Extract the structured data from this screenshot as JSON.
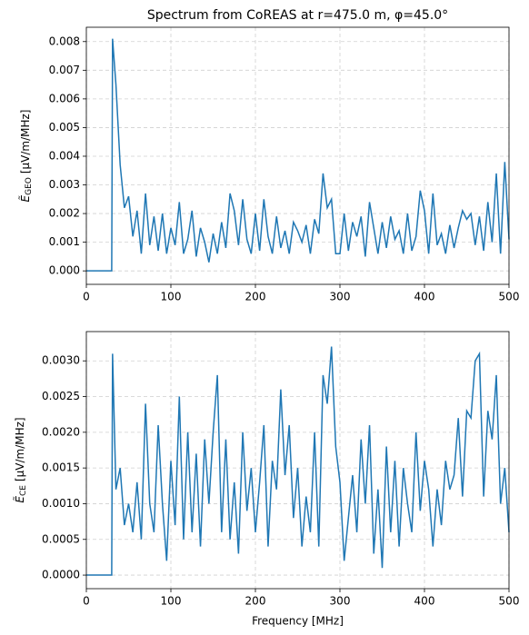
{
  "chart_data": [
    {
      "type": "line",
      "title": "Spectrum from CoREAS at r=475.0 m, φ=45.0°",
      "y_label": {
        "symbol": "Ẽ",
        "subscript": "GEO",
        "unit": "[μV/m/MHz]"
      },
      "color": "#1f77b4",
      "grid": true,
      "xlim": [
        0,
        500
      ],
      "xticks": [
        0,
        100,
        200,
        300,
        400,
        500
      ],
      "ylim": [
        -0.00047,
        0.0085
      ],
      "yticks": [
        {
          "value": 0,
          "label": "0.000"
        },
        {
          "value": 0.001,
          "label": "0.001"
        },
        {
          "value": 0.002,
          "label": "0.002"
        },
        {
          "value": 0.003,
          "label": "0.003"
        },
        {
          "value": 0.004,
          "label": "0.004"
        },
        {
          "value": 0.005,
          "label": "0.005"
        },
        {
          "value": 0.006,
          "label": "0.006"
        },
        {
          "value": 0.007,
          "label": "0.007"
        },
        {
          "value": 0.008,
          "label": "0.008"
        }
      ],
      "x": [
        0,
        30,
        31,
        35,
        40,
        45,
        50,
        55,
        60,
        65,
        70,
        75,
        80,
        85,
        90,
        95,
        100,
        105,
        110,
        115,
        120,
        125,
        130,
        135,
        140,
        145,
        150,
        155,
        160,
        165,
        170,
        175,
        180,
        185,
        190,
        195,
        200,
        205,
        210,
        215,
        220,
        225,
        230,
        235,
        240,
        245,
        250,
        255,
        260,
        265,
        270,
        275,
        280,
        285,
        290,
        295,
        300,
        305,
        310,
        315,
        320,
        325,
        330,
        335,
        340,
        345,
        350,
        355,
        360,
        365,
        370,
        375,
        380,
        385,
        390,
        395,
        400,
        405,
        410,
        415,
        420,
        425,
        430,
        435,
        440,
        445,
        450,
        455,
        460,
        465,
        470,
        475,
        480,
        485,
        490,
        495,
        500
      ],
      "values": [
        0,
        0,
        0.0081,
        0.0065,
        0.0037,
        0.0022,
        0.0026,
        0.0012,
        0.0021,
        0.0006,
        0.0027,
        0.0009,
        0.0019,
        0.0007,
        0.002,
        0.0006,
        0.0015,
        0.0009,
        0.0024,
        0.0006,
        0.0011,
        0.0021,
        0.0005,
        0.0015,
        0.001,
        0.0003,
        0.0013,
        0.0006,
        0.0017,
        0.0008,
        0.0027,
        0.0021,
        0.0009,
        0.0025,
        0.0011,
        0.0006,
        0.002,
        0.0007,
        0.0025,
        0.0012,
        0.0006,
        0.0019,
        0.0008,
        0.0014,
        0.0006,
        0.0017,
        0.0014,
        0.001,
        0.0016,
        0.0006,
        0.0018,
        0.0013,
        0.0034,
        0.0022,
        0.0025,
        0.0006,
        0.0006,
        0.002,
        0.0007,
        0.0017,
        0.0012,
        0.0019,
        0.0005,
        0.0024,
        0.0015,
        0.0006,
        0.0017,
        0.0008,
        0.0019,
        0.0011,
        0.0014,
        0.0006,
        0.002,
        0.0007,
        0.0012,
        0.0028,
        0.0021,
        0.0006,
        0.0027,
        0.0009,
        0.0013,
        0.0006,
        0.0016,
        0.0008,
        0.0015,
        0.0021,
        0.0018,
        0.002,
        0.0009,
        0.0019,
        0.0007,
        0.0024,
        0.001,
        0.0034,
        0.0006,
        0.0038,
        0.0011
      ]
    },
    {
      "type": "line",
      "x_label": "Frequency [MHz]",
      "y_label": {
        "symbol": "Ẽ",
        "subscript": "CE",
        "unit": "[μV/m/MHz]"
      },
      "color": "#1f77b4",
      "grid": true,
      "xlim": [
        0,
        500
      ],
      "xticks": [
        0,
        100,
        200,
        300,
        400,
        500
      ],
      "ylim": [
        -0.00019,
        0.00341
      ],
      "yticks": [
        {
          "value": 0,
          "label": "0.0000"
        },
        {
          "value": 0.0005,
          "label": "0.0005"
        },
        {
          "value": 0.001,
          "label": "0.0010"
        },
        {
          "value": 0.0015,
          "label": "0.0015"
        },
        {
          "value": 0.002,
          "label": "0.0020"
        },
        {
          "value": 0.0025,
          "label": "0.0025"
        },
        {
          "value": 0.003,
          "label": "0.0030"
        }
      ],
      "x": [
        0,
        30,
        31,
        35,
        40,
        45,
        50,
        55,
        60,
        65,
        70,
        75,
        80,
        85,
        90,
        95,
        100,
        105,
        110,
        115,
        120,
        125,
        130,
        135,
        140,
        145,
        150,
        155,
        160,
        165,
        170,
        175,
        180,
        185,
        190,
        195,
        200,
        205,
        210,
        215,
        220,
        225,
        230,
        235,
        240,
        245,
        250,
        255,
        260,
        265,
        270,
        275,
        280,
        285,
        290,
        295,
        300,
        305,
        310,
        315,
        320,
        325,
        330,
        335,
        340,
        345,
        350,
        355,
        360,
        365,
        370,
        375,
        380,
        385,
        390,
        395,
        400,
        405,
        410,
        415,
        420,
        425,
        430,
        435,
        440,
        445,
        450,
        455,
        460,
        465,
        470,
        475,
        480,
        485,
        490,
        495,
        500
      ],
      "values": [
        0,
        0,
        0.0031,
        0.0012,
        0.0015,
        0.0007,
        0.001,
        0.0006,
        0.0013,
        0.0005,
        0.0024,
        0.001,
        0.0006,
        0.0021,
        0.001,
        0.0002,
        0.0016,
        0.0007,
        0.0025,
        0.0005,
        0.002,
        0.0006,
        0.0017,
        0.0004,
        0.0019,
        0.001,
        0.002,
        0.0028,
        0.0006,
        0.0019,
        0.0005,
        0.0013,
        0.0003,
        0.002,
        0.0009,
        0.0015,
        0.0006,
        0.0013,
        0.0021,
        0.0004,
        0.0016,
        0.0012,
        0.0026,
        0.0014,
        0.0021,
        0.0008,
        0.0015,
        0.0004,
        0.0011,
        0.0006,
        0.002,
        0.0004,
        0.0028,
        0.0024,
        0.0032,
        0.0018,
        0.0013,
        0.0002,
        0.0008,
        0.0014,
        0.0006,
        0.0019,
        0.001,
        0.0021,
        0.0003,
        0.0012,
        0.0001,
        0.0018,
        0.0006,
        0.0016,
        0.0004,
        0.0015,
        0.001,
        0.0006,
        0.002,
        0.0009,
        0.0016,
        0.0012,
        0.0004,
        0.0012,
        0.0007,
        0.0016,
        0.0012,
        0.0014,
        0.0022,
        0.0011,
        0.0023,
        0.0022,
        0.003,
        0.0031,
        0.0011,
        0.0023,
        0.0019,
        0.0028,
        0.001,
        0.0015,
        0.0006
      ]
    }
  ]
}
